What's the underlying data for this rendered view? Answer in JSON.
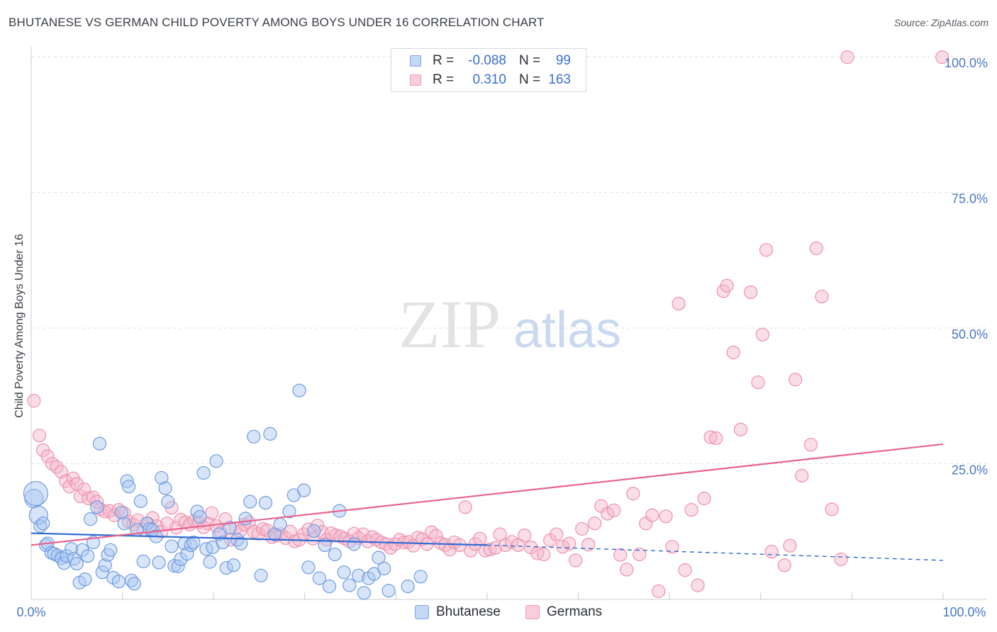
{
  "title": "BHUTANESE VS GERMAN CHILD POVERTY AMONG BOYS UNDER 16 CORRELATION CHART",
  "source": "Source: ZipAtlas.com",
  "watermark": {
    "zip": "ZIP",
    "atlas": "atlas"
  },
  "colors": {
    "blue_fill": "#a9c6f2",
    "blue_stroke": "#6f9be0",
    "blue_line": "#2f6ad4",
    "pink_fill": "#f5b6ca",
    "pink_stroke": "#ee90ae",
    "pink_line": "#e8638e",
    "grid": "#dcdfe4",
    "axis_tick_text": "#4a78c2"
  },
  "legend": {
    "rows": [
      {
        "r_label": "R =",
        "r_value": "-0.088",
        "n_label": "N =",
        "n_value": "99"
      },
      {
        "r_label": "R =",
        "r_value": "0.310",
        "n_label": "N =",
        "n_value": "163"
      }
    ]
  },
  "bottom_legend": [
    "Bhutanese",
    "Germans"
  ],
  "chart_data": {
    "type": "scatter",
    "title": "BHUTANESE VS GERMAN CHILD POVERTY AMONG BOYS UNDER 16 CORRELATION CHART",
    "xlabel": "",
    "ylabel": "Child Poverty Among Boys Under 16",
    "xlim": [
      0,
      100
    ],
    "ylim": [
      0,
      100
    ],
    "x_tick_labels": [
      "0.0%",
      "100.0%"
    ],
    "y_tick_labels": [
      "25.0%",
      "50.0%",
      "75.0%",
      "100.0%"
    ],
    "y_ticks": [
      25,
      50,
      75,
      100
    ],
    "grid": true,
    "legend_placement": "top-center",
    "series": [
      {
        "name": "Bhutanese",
        "r": -0.088,
        "n": 99,
        "trend": {
          "x0": 0,
          "y0": 12.2,
          "x1": 50,
          "y1": 10.0,
          "dashed_to_x": 100,
          "dashed_to_y": 7.2
        },
        "points": [
          [
            0.3,
            18.6
          ],
          [
            0.5,
            19.5
          ],
          [
            0.8,
            15.5
          ],
          [
            1.0,
            13.5
          ],
          [
            1.3,
            14.0
          ],
          [
            1.6,
            10.0
          ],
          [
            1.8,
            10.3
          ],
          [
            2.2,
            8.6
          ],
          [
            2.5,
            8.4
          ],
          [
            2.9,
            8.1
          ],
          [
            3.3,
            7.6
          ],
          [
            3.6,
            6.7
          ],
          [
            3.9,
            8.0
          ],
          [
            4.4,
            9.3
          ],
          [
            4.7,
            7.5
          ],
          [
            5.0,
            6.6
          ],
          [
            5.3,
            3.1
          ],
          [
            5.6,
            9.1
          ],
          [
            5.9,
            3.7
          ],
          [
            6.2,
            8.0
          ],
          [
            6.5,
            14.8
          ],
          [
            6.8,
            10.5
          ],
          [
            7.2,
            17.0
          ],
          [
            7.5,
            28.7
          ],
          [
            7.8,
            5.0
          ],
          [
            8.1,
            6.3
          ],
          [
            8.4,
            8.2
          ],
          [
            8.7,
            9.1
          ],
          [
            9.0,
            4.0
          ],
          [
            9.6,
            3.3
          ],
          [
            9.9,
            16.0
          ],
          [
            10.2,
            14.0
          ],
          [
            10.5,
            21.8
          ],
          [
            10.7,
            20.8
          ],
          [
            11.0,
            3.5
          ],
          [
            11.3,
            2.9
          ],
          [
            11.6,
            12.8
          ],
          [
            12.0,
            18.1
          ],
          [
            12.3,
            7.0
          ],
          [
            12.7,
            14.0
          ],
          [
            13.0,
            13.0
          ],
          [
            13.3,
            12.8
          ],
          [
            13.7,
            11.6
          ],
          [
            14.0,
            6.8
          ],
          [
            14.3,
            22.4
          ],
          [
            14.7,
            20.5
          ],
          [
            15.0,
            18.0
          ],
          [
            15.4,
            9.8
          ],
          [
            15.7,
            6.2
          ],
          [
            16.1,
            6.1
          ],
          [
            16.4,
            7.4
          ],
          [
            16.8,
            10.3
          ],
          [
            17.1,
            8.4
          ],
          [
            17.5,
            10.0
          ],
          [
            17.8,
            10.5
          ],
          [
            18.2,
            16.2
          ],
          [
            18.5,
            15.2
          ],
          [
            18.9,
            23.3
          ],
          [
            19.2,
            9.3
          ],
          [
            19.6,
            6.9
          ],
          [
            19.9,
            9.6
          ],
          [
            20.3,
            25.5
          ],
          [
            20.6,
            12.0
          ],
          [
            21.0,
            10.5
          ],
          [
            21.4,
            5.8
          ],
          [
            21.8,
            13.2
          ],
          [
            22.2,
            6.3
          ],
          [
            22.6,
            11.0
          ],
          [
            23.0,
            10.3
          ],
          [
            23.5,
            14.9
          ],
          [
            24.0,
            18.0
          ],
          [
            24.4,
            30.0
          ],
          [
            25.2,
            4.4
          ],
          [
            25.7,
            17.8
          ],
          [
            26.2,
            30.5
          ],
          [
            26.7,
            12.0
          ],
          [
            27.3,
            13.8
          ],
          [
            28.3,
            16.2
          ],
          [
            28.8,
            19.2
          ],
          [
            29.4,
            38.5
          ],
          [
            29.9,
            20.1
          ],
          [
            30.4,
            5.9
          ],
          [
            31.0,
            12.6
          ],
          [
            31.6,
            3.9
          ],
          [
            32.2,
            10.0
          ],
          [
            32.7,
            2.4
          ],
          [
            33.3,
            8.3
          ],
          [
            33.8,
            16.3
          ],
          [
            34.3,
            5.0
          ],
          [
            34.9,
            2.6
          ],
          [
            35.4,
            10.2
          ],
          [
            35.9,
            4.4
          ],
          [
            36.5,
            1.2
          ],
          [
            37.0,
            3.9
          ],
          [
            37.6,
            4.7
          ],
          [
            38.1,
            7.7
          ],
          [
            38.7,
            5.7
          ],
          [
            39.2,
            1.6
          ],
          [
            41.3,
            2.4
          ],
          [
            42.7,
            4.2
          ]
        ]
      },
      {
        "name": "Germans",
        "r": 0.31,
        "n": 163,
        "trend": {
          "x0": 0,
          "y0": 10.0,
          "x1": 100,
          "y1": 28.6
        },
        "points": [
          [
            0.3,
            36.6
          ],
          [
            0.9,
            30.2
          ],
          [
            1.3,
            27.5
          ],
          [
            1.8,
            26.4
          ],
          [
            2.3,
            25.0
          ],
          [
            2.8,
            24.4
          ],
          [
            3.3,
            23.5
          ],
          [
            3.8,
            21.8
          ],
          [
            4.2,
            20.8
          ],
          [
            4.6,
            22.3
          ],
          [
            5.0,
            21.3
          ],
          [
            5.4,
            19.0
          ],
          [
            5.8,
            20.3
          ],
          [
            6.3,
            18.6
          ],
          [
            6.8,
            18.8
          ],
          [
            7.2,
            18.0
          ],
          [
            7.6,
            16.6
          ],
          [
            8.1,
            16.2
          ],
          [
            8.6,
            16.3
          ],
          [
            9.1,
            15.5
          ],
          [
            9.6,
            16.5
          ],
          [
            10.2,
            15.9
          ],
          [
            10.7,
            14.3
          ],
          [
            11.2,
            13.8
          ],
          [
            11.7,
            14.6
          ],
          [
            12.3,
            12.8
          ],
          [
            12.8,
            14.0
          ],
          [
            13.3,
            15.0
          ],
          [
            13.8,
            13.5
          ],
          [
            14.3,
            12.5
          ],
          [
            14.9,
            14.0
          ],
          [
            15.4,
            16.9
          ],
          [
            15.9,
            13.2
          ],
          [
            16.4,
            14.7
          ],
          [
            16.9,
            14.2
          ],
          [
            17.4,
            13.8
          ],
          [
            17.9,
            14.5
          ],
          [
            18.4,
            14.2
          ],
          [
            18.9,
            13.3
          ],
          [
            19.4,
            14.0
          ],
          [
            19.8,
            15.9
          ],
          [
            20.3,
            13.5
          ],
          [
            20.8,
            12.3
          ],
          [
            21.3,
            14.8
          ],
          [
            21.9,
            11.0
          ],
          [
            22.4,
            13.1
          ],
          [
            22.9,
            12.6
          ],
          [
            23.4,
            13.8
          ],
          [
            23.9,
            14.2
          ],
          [
            24.4,
            12.5
          ],
          [
            24.9,
            12.1
          ],
          [
            25.4,
            13.0
          ],
          [
            25.9,
            12.7
          ],
          [
            26.4,
            11.5
          ],
          [
            26.9,
            11.8
          ],
          [
            27.4,
            12.0
          ],
          [
            27.9,
            11.3
          ],
          [
            28.4,
            12.5
          ],
          [
            28.9,
            10.7
          ],
          [
            29.4,
            11.0
          ],
          [
            29.9,
            12.0
          ],
          [
            30.4,
            12.9
          ],
          [
            30.9,
            11.2
          ],
          [
            31.4,
            13.6
          ],
          [
            31.9,
            12.4
          ],
          [
            32.4,
            11.0
          ],
          [
            32.9,
            12.2
          ],
          [
            33.4,
            11.8
          ],
          [
            33.9,
            11.6
          ],
          [
            34.4,
            11.2
          ],
          [
            34.9,
            10.7
          ],
          [
            35.4,
            12.1
          ],
          [
            35.9,
            11.3
          ],
          [
            36.4,
            12.0
          ],
          [
            36.9,
            10.7
          ],
          [
            37.4,
            11.5
          ],
          [
            37.9,
            11.0
          ],
          [
            38.4,
            10.5
          ],
          [
            38.9,
            10.2
          ],
          [
            39.4,
            9.5
          ],
          [
            39.9,
            10.2
          ],
          [
            40.4,
            11.0
          ],
          [
            40.9,
            10.5
          ],
          [
            41.4,
            10.6
          ],
          [
            41.9,
            9.9
          ],
          [
            42.4,
            11.4
          ],
          [
            42.9,
            11.1
          ],
          [
            43.4,
            10.2
          ],
          [
            43.9,
            12.4
          ],
          [
            44.4,
            11.7
          ],
          [
            44.9,
            10.4
          ],
          [
            45.4,
            10.0
          ],
          [
            45.9,
            9.2
          ],
          [
            46.4,
            10.5
          ],
          [
            47.0,
            10.0
          ],
          [
            47.6,
            17.0
          ],
          [
            48.2,
            9.0
          ],
          [
            48.7,
            10.2
          ],
          [
            49.2,
            11.2
          ],
          [
            49.8,
            9.0
          ],
          [
            50.3,
            9.2
          ],
          [
            50.9,
            9.5
          ],
          [
            51.4,
            12.0
          ],
          [
            52.0,
            10.0
          ],
          [
            52.7,
            10.6
          ],
          [
            53.4,
            10.0
          ],
          [
            54.1,
            11.8
          ],
          [
            54.8,
            9.6
          ],
          [
            55.5,
            8.5
          ],
          [
            56.2,
            8.3
          ],
          [
            56.9,
            10.9
          ],
          [
            57.6,
            12.0
          ],
          [
            58.3,
            9.7
          ],
          [
            59.0,
            10.3
          ],
          [
            59.7,
            7.2
          ],
          [
            60.4,
            13.0
          ],
          [
            61.1,
            10.1
          ],
          [
            61.8,
            14.0
          ],
          [
            62.5,
            17.2
          ],
          [
            63.2,
            15.8
          ],
          [
            63.9,
            16.4
          ],
          [
            64.6,
            8.2
          ],
          [
            65.3,
            5.5
          ],
          [
            66.0,
            19.5
          ],
          [
            66.7,
            8.3
          ],
          [
            67.4,
            14.0
          ],
          [
            68.1,
            15.5
          ],
          [
            68.8,
            1.5
          ],
          [
            69.6,
            15.3
          ],
          [
            70.3,
            9.7
          ],
          [
            71.0,
            54.5
          ],
          [
            71.7,
            5.4
          ],
          [
            72.4,
            16.5
          ],
          [
            73.1,
            2.6
          ],
          [
            73.8,
            18.6
          ],
          [
            74.5,
            29.9
          ],
          [
            75.1,
            29.7
          ],
          [
            75.9,
            56.8
          ],
          [
            76.3,
            57.8
          ],
          [
            77.0,
            45.5
          ],
          [
            77.8,
            31.3
          ],
          [
            78.9,
            56.6
          ],
          [
            79.7,
            40.0
          ],
          [
            80.2,
            48.8
          ],
          [
            80.6,
            64.4
          ],
          [
            81.2,
            8.8
          ],
          [
            82.6,
            6.3
          ],
          [
            83.2,
            9.9
          ],
          [
            83.8,
            40.5
          ],
          [
            84.5,
            22.8
          ],
          [
            85.5,
            28.5
          ],
          [
            86.1,
            64.7
          ],
          [
            86.7,
            55.8
          ],
          [
            87.8,
            16.6
          ],
          [
            88.8,
            7.4
          ],
          [
            89.5,
            99.9
          ],
          [
            99.9,
            99.9
          ]
        ]
      }
    ]
  }
}
